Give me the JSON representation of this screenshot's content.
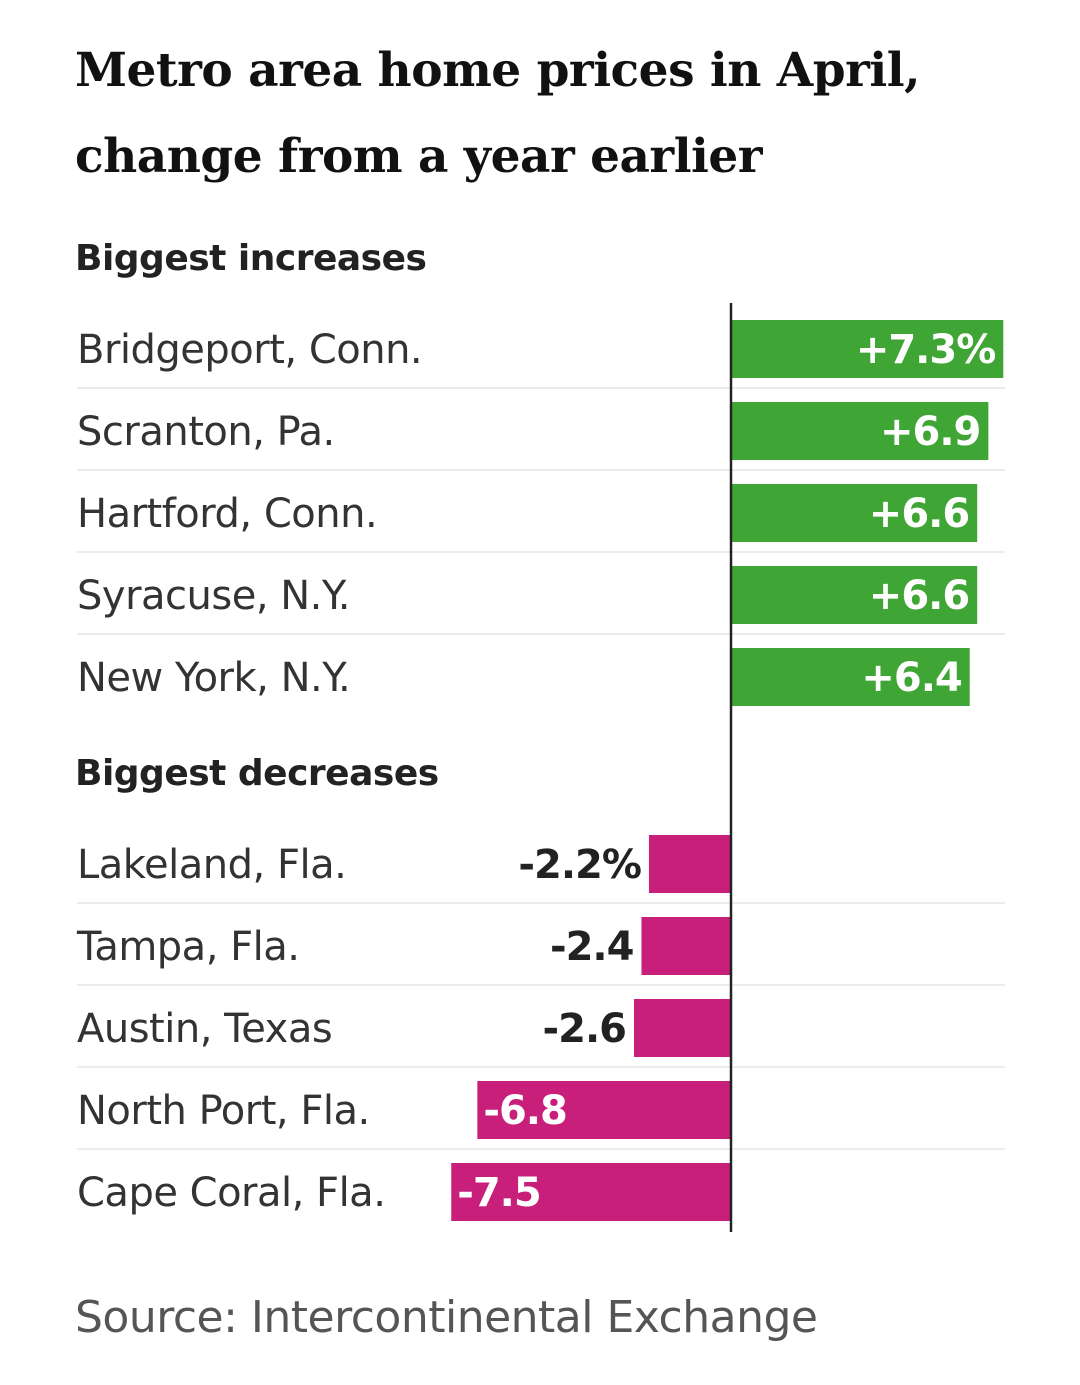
{
  "title": "Metro area home prices in April, change from a year earlier",
  "source": "Source: Intercontinental Exchange",
  "colors": {
    "increase": "#3fa535",
    "decrease": "#c81f7a",
    "axis": "#222222",
    "divider": "#e6e6e6"
  },
  "chart_data": {
    "type": "bar",
    "orientation": "horizontal",
    "unit": "%",
    "groups": [
      {
        "label": "Biggest increases",
        "categories": [
          "Bridgeport, Conn.",
          "Scranton, Pa.",
          "Hartford, Conn.",
          "Syracuse, N.Y.",
          "New York, N.Y."
        ],
        "values": [
          7.3,
          6.9,
          6.6,
          6.6,
          6.4
        ],
        "value_labels": [
          "+7.3%",
          "+6.9",
          "+6.6",
          "+6.6",
          "+6.4"
        ]
      },
      {
        "label": "Biggest decreases",
        "categories": [
          "Lakeland, Fla.",
          "Tampa, Fla.",
          "Austin, Texas",
          "North Port, Fla.",
          "Cape Coral, Fla."
        ],
        "values": [
          -2.2,
          -2.4,
          -2.6,
          -6.8,
          -7.5
        ],
        "value_labels": [
          "-2.2%",
          "-2.4",
          "-2.6",
          "-6.8",
          "-7.5"
        ]
      }
    ]
  }
}
